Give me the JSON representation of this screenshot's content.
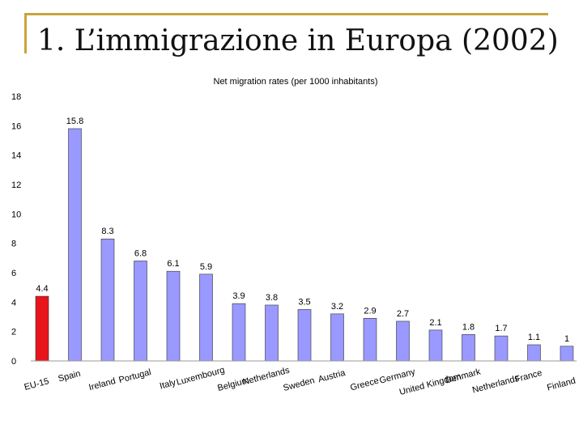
{
  "slide": {
    "title": "1. L’immigrazione in Europa (2002)"
  },
  "colors": {
    "frame": "#c8a43c",
    "highlight_bar": "#e8141b",
    "bar": "#9999ff",
    "bar_edge": "#333333"
  },
  "chart_data": {
    "type": "bar",
    "title": "Net migration rates (per 1000 inhabitants)",
    "xlabel": "",
    "ylabel": "",
    "ylim": [
      0,
      18
    ],
    "yticks": [
      0,
      2,
      4,
      6,
      8,
      10,
      12,
      14,
      16,
      18
    ],
    "grid": false,
    "categories": [
      "EU-15",
      "Spain",
      "Ireland",
      "Portugal",
      "Italy",
      "Luxembourg",
      "Belgium",
      "Netherlands",
      "Sweden",
      "Austria",
      "Greece",
      "Germany",
      "United Kingdom",
      "Denmark",
      "Netherlands",
      "France",
      "Finland"
    ],
    "values": [
      4.4,
      15.8,
      8.3,
      6.8,
      6.1,
      5.9,
      3.9,
      3.8,
      3.5,
      3.2,
      2.9,
      2.7,
      2.1,
      1.8,
      1.7,
      1.1,
      1
    ],
    "value_labels": [
      "4.4",
      "15.8",
      "8.3",
      "6.8",
      "6.1",
      "5.9",
      "3.9",
      "3.8",
      "3.5",
      "3.2",
      "2.9",
      "2.7",
      "2.1",
      "1.8",
      "1.7",
      "1.1",
      "1"
    ],
    "highlight_index": 0
  }
}
